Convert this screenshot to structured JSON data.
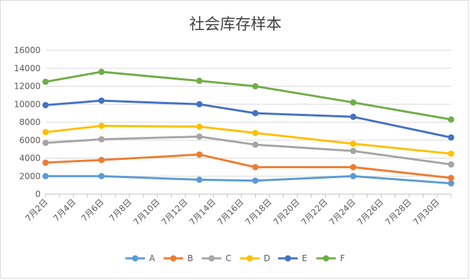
{
  "chart_data": {
    "type": "line",
    "title": "社会库存样本",
    "xlabel": "",
    "ylabel": "",
    "ylim": [
      0,
      16000
    ],
    "y_ticks": [
      0,
      2000,
      4000,
      6000,
      8000,
      10000,
      12000,
      14000,
      16000
    ],
    "y_tick_labels": [
      "0",
      "2000",
      "4000",
      "6000",
      "8000",
      "10000",
      "12000",
      "14000",
      "16000"
    ],
    "x_range_day": [
      2,
      31
    ],
    "x_ticks": [
      2,
      4,
      6,
      8,
      10,
      12,
      14,
      16,
      18,
      20,
      22,
      24,
      26,
      28,
      30
    ],
    "x_tick_labels": [
      "7月2日",
      "7月4日",
      "7月6日",
      "7月8日",
      "7月10日",
      "7月12日",
      "7月14日",
      "7月16日",
      "7月18日",
      "7月20日",
      "7月22日",
      "7月24日",
      "7月26日",
      "7月28日",
      "7月30日"
    ],
    "x_dates": [
      "7月2日",
      "7月6日",
      "7月13日",
      "7月17日",
      "7月24日",
      "7月31日"
    ],
    "x_days": [
      2,
      6,
      13,
      17,
      24,
      31
    ],
    "grid": "horizontal",
    "legend_position": "bottom",
    "series": [
      {
        "name": "A",
        "color": "#5b9bd5",
        "values": [
          2000,
          2000,
          1600,
          1500,
          2000,
          1200
        ]
      },
      {
        "name": "B",
        "color": "#ed7d31",
        "values": [
          3500,
          3800,
          4400,
          3000,
          3000,
          1800
        ]
      },
      {
        "name": "C",
        "color": "#a5a5a5",
        "values": [
          5700,
          6100,
          6400,
          5500,
          4800,
          3300
        ]
      },
      {
        "name": "D",
        "color": "#ffc000",
        "values": [
          6900,
          7600,
          7500,
          6800,
          5600,
          4500
        ]
      },
      {
        "name": "E",
        "color": "#4472c4",
        "values": [
          9900,
          10400,
          10000,
          9000,
          8600,
          6300
        ]
      },
      {
        "name": "F",
        "color": "#70ad47",
        "values": [
          12500,
          13600,
          12600,
          12000,
          10200,
          8300
        ]
      }
    ]
  }
}
